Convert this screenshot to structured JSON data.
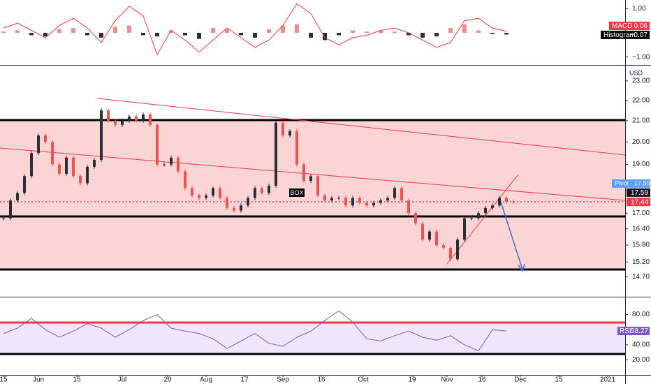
{
  "chart_data": [
    {
      "type": "macd",
      "name": "MACD",
      "x": [
        0,
        4,
        8,
        12,
        16,
        20,
        24,
        28,
        32,
        36,
        40,
        44,
        48,
        52,
        56,
        60,
        64,
        68,
        72,
        76,
        80,
        84,
        88,
        92,
        96,
        100,
        104,
        108,
        112,
        116,
        120,
        124,
        128,
        132,
        136,
        140,
        144
      ],
      "values": [
        0.2,
        0.4,
        0.1,
        -0.2,
        0.3,
        0.6,
        0.2,
        -0.4,
        0.5,
        1.1,
        0.7,
        -0.9,
        0.1,
        -0.3,
        -0.8,
        -0.3,
        0.2,
        -0.2,
        -0.6,
        -0.3,
        0.3,
        1.2,
        0.8,
        -0.2,
        -0.5,
        -0.2,
        -0.1,
        0.1,
        0.2,
        0.0,
        -0.3,
        -0.6,
        -0.4,
        0.5,
        0.6,
        0.2,
        0.06
      ],
      "color": "#f23645",
      "histogram": {
        "name": "Histogram",
        "values": [
          0.05,
          0.1,
          -0.1,
          -0.15,
          0.15,
          0.2,
          -0.1,
          -0.2,
          0.25,
          0.3,
          -0.1,
          -0.15,
          0.1,
          -0.1,
          -0.25,
          0.2,
          0.15,
          -0.1,
          -0.2,
          0.15,
          0.3,
          0.35,
          -0.2,
          -0.3,
          -0.1,
          0.1,
          0.05,
          0.1,
          0.05,
          -0.1,
          -0.2,
          -0.15,
          0.2,
          0.35,
          0.1,
          -0.05,
          -0.07
        ],
        "value_labels": [
          null,
          null,
          null,
          null,
          null,
          null,
          null,
          null,
          null,
          null,
          null,
          null,
          null,
          null,
          null,
          null,
          null,
          null,
          null,
          null,
          null,
          null,
          null,
          null,
          null,
          null,
          null,
          null,
          null,
          null,
          null,
          null,
          null,
          null,
          null,
          null,
          "−0.07"
        ],
        "positive_color": "#f28b8b",
        "negative_color": "#2a2e39"
      },
      "ylim": [
        -1.3,
        1.3
      ],
      "yticks": [
        {
          "value": 1,
          "label": "1.00"
        },
        {
          "value": -1,
          "label": "−1.00"
        }
      ]
    },
    {
      "type": "candlestick",
      "currency": "USD",
      "log": true,
      "x": [
        0,
        2,
        4,
        6,
        8,
        10,
        12,
        14,
        16,
        18,
        20,
        22,
        24,
        26,
        28,
        30,
        32,
        34,
        36,
        38,
        40,
        42,
        44,
        46,
        48,
        50,
        52,
        54,
        56,
        58,
        60,
        62,
        64,
        66,
        68,
        70,
        72,
        74,
        76,
        78,
        80,
        82,
        84,
        86,
        88,
        90,
        92,
        94,
        96,
        98,
        100,
        102,
        104,
        106,
        108,
        110,
        112,
        114,
        116,
        118,
        120,
        122,
        124,
        126,
        128,
        130,
        132,
        134,
        136,
        138,
        140,
        142,
        144,
        146
      ],
      "values": [
        16.8,
        17.5,
        17.8,
        18.5,
        19.5,
        20.3,
        20.0,
        19.0,
        18.6,
        19.3,
        18.5,
        18.2,
        18.9,
        19.2,
        21.5,
        21.0,
        20.8,
        21.0,
        21.2,
        21.0,
        21.3,
        20.8,
        19.0,
        19.0,
        19.3,
        18.7,
        18.0,
        17.7,
        17.6,
        17.7,
        18.0,
        17.6,
        17.2,
        17.1,
        17.3,
        17.6,
        18.0,
        17.8,
        18.1,
        20.9,
        20.3,
        20.5,
        19.0,
        18.3,
        18.5,
        17.7,
        17.5,
        17.6,
        17.6,
        17.3,
        17.6,
        17.4,
        17.3,
        17.4,
        17.5,
        17.6,
        18.0,
        17.5,
        17.0,
        16.6,
        16.0,
        16.3,
        15.8,
        15.7,
        15.3,
        16.0,
        16.8,
        16.8,
        17.0,
        17.2,
        17.3,
        17.6,
        17.45,
        17.44
      ],
      "up_color": "#2a2e39",
      "down_color": "#ef5350",
      "ylim": [
        14.2,
        23.74
      ],
      "yticks": [
        {
          "value": 23,
          "label": "23.00"
        },
        {
          "value": 22,
          "label": "22.00"
        },
        {
          "value": 21,
          "label": "21.00"
        },
        {
          "value": 20,
          "label": "20.00"
        },
        {
          "value": 19,
          "label": "19.00"
        },
        {
          "value": 17,
          "label": "17.00"
        },
        {
          "value": 16.4,
          "label": "16.40"
        },
        {
          "value": 15.8,
          "label": "15.80"
        },
        {
          "value": 15.2,
          "label": "15.20"
        },
        {
          "value": 14.7,
          "label": "14.70"
        }
      ],
      "xlim": [
        -1,
        178
      ],
      "xticks": [
        {
          "value": 0,
          "label": "15"
        },
        {
          "value": 10,
          "label": "Jun"
        },
        {
          "value": 21,
          "label": "15"
        },
        {
          "value": 34,
          "label": "Jul"
        },
        {
          "value": 47,
          "label": "20"
        },
        {
          "value": 58,
          "label": "Aug"
        },
        {
          "value": 69,
          "label": "17"
        },
        {
          "value": 80,
          "label": "Sep"
        },
        {
          "value": 91,
          "label": "16"
        },
        {
          "value": 103,
          "label": "Oct"
        },
        {
          "value": 117,
          "label": "19"
        },
        {
          "value": 127,
          "label": "Nov"
        },
        {
          "value": 137,
          "label": "16"
        },
        {
          "value": 148,
          "label": "Dec"
        },
        {
          "value": 159,
          "label": "15"
        },
        {
          "value": 173,
          "label": "2021"
        }
      ],
      "annotation": "BOX",
      "pivot_label": "Pivot · 17.59",
      "price_markers": [
        {
          "value": 17.59,
          "color": "#131722"
        },
        {
          "value": 17.44,
          "color": "#f23645"
        }
      ]
    },
    {
      "type": "rsi",
      "name": "RSI",
      "color": "#7e57c2",
      "x": [
        0,
        4,
        8,
        12,
        16,
        20,
        24,
        28,
        32,
        36,
        40,
        44,
        48,
        52,
        56,
        60,
        64,
        68,
        72,
        76,
        80,
        84,
        88,
        92,
        96,
        100,
        104,
        108,
        112,
        116,
        120,
        124,
        128,
        132,
        136,
        140,
        144
      ],
      "values": [
        55,
        62,
        75,
        60,
        50,
        58,
        68,
        62,
        50,
        60,
        72,
        80,
        62,
        58,
        55,
        48,
        35,
        45,
        55,
        42,
        38,
        50,
        58,
        72,
        85,
        70,
        48,
        45,
        52,
        58,
        50,
        46,
        52,
        40,
        32,
        60,
        58.27
      ],
      "ylim": [
        1,
        99
      ],
      "yticks": [
        {
          "value": 80,
          "label": "80.00"
        },
        {
          "value": 40,
          "label": "40.00"
        },
        {
          "value": 20,
          "label": "20.00"
        }
      ]
    }
  ]
}
